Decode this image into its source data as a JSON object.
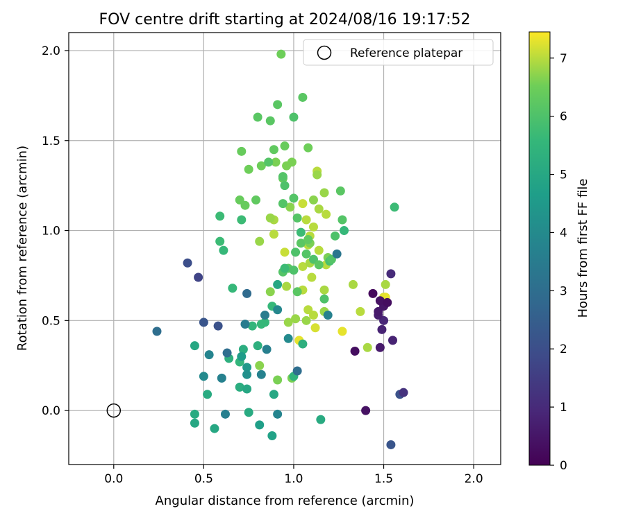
{
  "chart_data": {
    "type": "scatter",
    "title": "FOV centre drift starting at 2024/08/16 19:17:52",
    "xlabel": "Angular distance from reference (arcmin)",
    "ylabel": "Rotation from reference (arcmin)",
    "xlim": [
      -0.25,
      2.15
    ],
    "ylim": [
      -0.3,
      2.1
    ],
    "x_ticks": [
      "0.0",
      "0.5",
      "1.0",
      "1.5",
      "2.0"
    ],
    "y_ticks": [
      "0.0",
      "0.5",
      "1.0",
      "1.5",
      "2.0"
    ],
    "grid": true,
    "legend": {
      "position": "top-right",
      "label": "Reference platepar"
    },
    "reference_point": {
      "x": 0.0,
      "y": 0.0
    },
    "colorbar": {
      "label": "Hours from first FF file",
      "range": [
        0,
        7.45
      ],
      "ticks": [
        "0",
        "1",
        "2",
        "3",
        "4",
        "5",
        "6",
        "7"
      ],
      "colormap": "viridis"
    },
    "points": [
      {
        "x": 1.5,
        "y": 0.63,
        "h": 7.2
      },
      {
        "x": 1.51,
        "y": 0.63,
        "h": 7.3
      },
      {
        "x": 1.27,
        "y": 0.44,
        "h": 7.3
      },
      {
        "x": 1.03,
        "y": 0.39,
        "h": 7.3
      },
      {
        "x": 1.12,
        "y": 0.46,
        "h": 7.2
      },
      {
        "x": 1.37,
        "y": 0.55,
        "h": 7.0
      },
      {
        "x": 1.51,
        "y": 0.7,
        "h": 6.9
      },
      {
        "x": 1.41,
        "y": 0.35,
        "h": 6.9
      },
      {
        "x": 1.33,
        "y": 0.7,
        "h": 6.9
      },
      {
        "x": 1.11,
        "y": 0.53,
        "h": 7.0
      },
      {
        "x": 1.17,
        "y": 0.55,
        "h": 6.8
      },
      {
        "x": 1.08,
        "y": 0.56,
        "h": 7.0
      },
      {
        "x": 1.05,
        "y": 0.67,
        "h": 7.0
      },
      {
        "x": 1.17,
        "y": 0.67,
        "h": 6.9
      },
      {
        "x": 0.96,
        "y": 0.69,
        "h": 6.9
      },
      {
        "x": 1.1,
        "y": 0.74,
        "h": 7.0
      },
      {
        "x": 1.05,
        "y": 0.8,
        "h": 7.0
      },
      {
        "x": 1.09,
        "y": 0.82,
        "h": 6.9
      },
      {
        "x": 1.18,
        "y": 0.81,
        "h": 7.0
      },
      {
        "x": 1.14,
        "y": 0.89,
        "h": 7.0
      },
      {
        "x": 1.08,
        "y": 0.92,
        "h": 7.0
      },
      {
        "x": 0.95,
        "y": 0.88,
        "h": 7.1
      },
      {
        "x": 1.09,
        "y": 0.97,
        "h": 7.0
      },
      {
        "x": 1.11,
        "y": 1.02,
        "h": 7.0
      },
      {
        "x": 1.07,
        "y": 1.06,
        "h": 7.0
      },
      {
        "x": 1.18,
        "y": 1.09,
        "h": 7.0
      },
      {
        "x": 1.14,
        "y": 1.12,
        "h": 6.9
      },
      {
        "x": 1.05,
        "y": 1.15,
        "h": 7.1
      },
      {
        "x": 0.89,
        "y": 1.06,
        "h": 6.9
      },
      {
        "x": 0.87,
        "y": 1.07,
        "h": 6.8
      },
      {
        "x": 0.89,
        "y": 0.98,
        "h": 7.0
      },
      {
        "x": 0.81,
        "y": 0.94,
        "h": 6.8
      },
      {
        "x": 1.13,
        "y": 1.33,
        "h": 7.0
      },
      {
        "x": 1.13,
        "y": 1.31,
        "h": 6.8
      },
      {
        "x": 1.17,
        "y": 1.21,
        "h": 6.8
      },
      {
        "x": 1.01,
        "y": 0.51,
        "h": 6.8
      },
      {
        "x": 0.97,
        "y": 0.49,
        "h": 6.8
      },
      {
        "x": 1.07,
        "y": 0.5,
        "h": 6.8
      },
      {
        "x": 0.87,
        "y": 0.66,
        "h": 6.7
      },
      {
        "x": 0.81,
        "y": 0.25,
        "h": 6.7
      },
      {
        "x": 0.91,
        "y": 0.17,
        "h": 6.6
      },
      {
        "x": 0.99,
        "y": 0.18,
        "h": 6.6
      },
      {
        "x": 1.19,
        "y": 0.85,
        "h": 6.6
      },
      {
        "x": 1.09,
        "y": 0.93,
        "h": 6.6
      },
      {
        "x": 1.11,
        "y": 1.17,
        "h": 6.7
      },
      {
        "x": 0.98,
        "y": 1.13,
        "h": 6.7
      },
      {
        "x": 0.94,
        "y": 1.29,
        "h": 6.4
      },
      {
        "x": 0.96,
        "y": 1.36,
        "h": 6.6
      },
      {
        "x": 0.99,
        "y": 1.38,
        "h": 6.6
      },
      {
        "x": 0.9,
        "y": 1.38,
        "h": 6.6
      },
      {
        "x": 0.82,
        "y": 1.36,
        "h": 6.5
      },
      {
        "x": 0.75,
        "y": 1.34,
        "h": 6.5
      },
      {
        "x": 0.71,
        "y": 1.44,
        "h": 6.4
      },
      {
        "x": 0.86,
        "y": 1.38,
        "h": 6.1
      },
      {
        "x": 0.89,
        "y": 1.45,
        "h": 6.3
      },
      {
        "x": 0.95,
        "y": 1.47,
        "h": 6.4
      },
      {
        "x": 1.08,
        "y": 1.46,
        "h": 6.5
      },
      {
        "x": 0.8,
        "y": 1.63,
        "h": 6.2
      },
      {
        "x": 0.87,
        "y": 1.61,
        "h": 6.2
      },
      {
        "x": 0.91,
        "y": 1.7,
        "h": 6.2
      },
      {
        "x": 1.05,
        "y": 1.74,
        "h": 6.2
      },
      {
        "x": 1.0,
        "y": 1.63,
        "h": 6.0
      },
      {
        "x": 0.93,
        "y": 1.98,
        "h": 6.5
      },
      {
        "x": 0.7,
        "y": 1.17,
        "h": 6.4
      },
      {
        "x": 0.73,
        "y": 1.14,
        "h": 6.4
      },
      {
        "x": 0.79,
        "y": 1.17,
        "h": 6.3
      },
      {
        "x": 0.94,
        "y": 1.15,
        "h": 6.1
      },
      {
        "x": 1.02,
        "y": 1.07,
        "h": 6.1
      },
      {
        "x": 1.0,
        "y": 1.18,
        "h": 6.1
      },
      {
        "x": 0.95,
        "y": 1.25,
        "h": 6.0
      },
      {
        "x": 0.94,
        "y": 1.3,
        "h": 6.1
      },
      {
        "x": 1.27,
        "y": 1.06,
        "h": 6.1
      },
      {
        "x": 1.26,
        "y": 1.22,
        "h": 6.2
      },
      {
        "x": 1.23,
        "y": 0.97,
        "h": 6.0
      },
      {
        "x": 1.28,
        "y": 1.0,
        "h": 5.6
      },
      {
        "x": 1.04,
        "y": 0.93,
        "h": 6.2
      },
      {
        "x": 1.08,
        "y": 0.95,
        "h": 6.3
      },
      {
        "x": 1.04,
        "y": 0.99,
        "h": 5.7
      },
      {
        "x": 1.07,
        "y": 0.87,
        "h": 6.1
      },
      {
        "x": 1.01,
        "y": 0.88,
        "h": 6.0
      },
      {
        "x": 0.97,
        "y": 0.79,
        "h": 6.2
      },
      {
        "x": 0.94,
        "y": 0.77,
        "h": 6.1
      },
      {
        "x": 0.95,
        "y": 0.79,
        "h": 5.7
      },
      {
        "x": 1.0,
        "y": 0.78,
        "h": 6.0
      },
      {
        "x": 1.11,
        "y": 0.84,
        "h": 6.0
      },
      {
        "x": 1.14,
        "y": 0.81,
        "h": 6.2
      },
      {
        "x": 1.2,
        "y": 0.83,
        "h": 5.9
      },
      {
        "x": 1.21,
        "y": 0.84,
        "h": 6.1
      },
      {
        "x": 1.17,
        "y": 0.62,
        "h": 6.0
      },
      {
        "x": 1.02,
        "y": 0.66,
        "h": 6.2
      },
      {
        "x": 0.91,
        "y": 0.7,
        "h": 5.0
      },
      {
        "x": 0.71,
        "y": 1.06,
        "h": 5.7
      },
      {
        "x": 0.59,
        "y": 1.08,
        "h": 5.7
      },
      {
        "x": 0.59,
        "y": 0.94,
        "h": 5.7
      },
      {
        "x": 0.61,
        "y": 0.89,
        "h": 5.6
      },
      {
        "x": 0.66,
        "y": 0.68,
        "h": 5.6
      },
      {
        "x": 1.56,
        "y": 1.13,
        "h": 5.7
      },
      {
        "x": 0.88,
        "y": 0.58,
        "h": 5.6
      },
      {
        "x": 0.77,
        "y": 0.47,
        "h": 5.5
      },
      {
        "x": 0.82,
        "y": 0.48,
        "h": 5.6
      },
      {
        "x": 0.84,
        "y": 0.49,
        "h": 5.6
      },
      {
        "x": 0.8,
        "y": 0.36,
        "h": 5.3
      },
      {
        "x": 0.7,
        "y": 0.27,
        "h": 5.5
      },
      {
        "x": 0.64,
        "y": 0.29,
        "h": 5.3
      },
      {
        "x": 0.72,
        "y": 0.34,
        "h": 5.2
      },
      {
        "x": 1.05,
        "y": 0.37,
        "h": 5.3
      },
      {
        "x": 1.0,
        "y": 0.19,
        "h": 5.4
      },
      {
        "x": 0.7,
        "y": 0.13,
        "h": 5.2
      },
      {
        "x": 0.74,
        "y": 0.12,
        "h": 5.0
      },
      {
        "x": 0.89,
        "y": 0.09,
        "h": 5.0
      },
      {
        "x": 0.52,
        "y": 0.09,
        "h": 5.1
      },
      {
        "x": 0.45,
        "y": 0.36,
        "h": 5.0
      },
      {
        "x": 0.75,
        "y": -0.01,
        "h": 5.1
      },
      {
        "x": 0.45,
        "y": -0.02,
        "h": 5.1
      },
      {
        "x": 0.45,
        "y": -0.07,
        "h": 5.0
      },
      {
        "x": 0.56,
        "y": -0.1,
        "h": 5.0
      },
      {
        "x": 1.15,
        "y": -0.05,
        "h": 5.1
      },
      {
        "x": 0.88,
        "y": -0.14,
        "h": 4.8
      },
      {
        "x": 0.81,
        "y": -0.08,
        "h": 4.7
      },
      {
        "x": 0.71,
        "y": 0.3,
        "h": 4.6
      },
      {
        "x": 0.74,
        "y": 0.24,
        "h": 4.5
      },
      {
        "x": 0.74,
        "y": 0.2,
        "h": 4.2
      },
      {
        "x": 0.5,
        "y": 0.19,
        "h": 4.0
      },
      {
        "x": 0.53,
        "y": 0.31,
        "h": 3.8
      },
      {
        "x": 0.6,
        "y": 0.18,
        "h": 3.7
      },
      {
        "x": 0.62,
        "y": -0.02,
        "h": 3.6
      },
      {
        "x": 0.91,
        "y": -0.02,
        "h": 3.8
      },
      {
        "x": 0.91,
        "y": 0.56,
        "h": 3.9
      },
      {
        "x": 0.97,
        "y": 0.4,
        "h": 4.0
      },
      {
        "x": 0.84,
        "y": 0.53,
        "h": 3.5
      },
      {
        "x": 0.73,
        "y": 0.48,
        "h": 3.5
      },
      {
        "x": 0.85,
        "y": 0.34,
        "h": 3.6
      },
      {
        "x": 0.82,
        "y": 0.2,
        "h": 3.7
      },
      {
        "x": 1.19,
        "y": 0.53,
        "h": 3.7
      },
      {
        "x": 1.24,
        "y": 0.87,
        "h": 3.3
      },
      {
        "x": 1.02,
        "y": 0.22,
        "h": 3.0
      },
      {
        "x": 0.24,
        "y": 0.44,
        "h": 3.0
      },
      {
        "x": 0.63,
        "y": 0.32,
        "h": 3.0
      },
      {
        "x": 0.74,
        "y": 0.65,
        "h": 2.9
      },
      {
        "x": 0.5,
        "y": 0.49,
        "h": 2.2
      },
      {
        "x": 0.58,
        "y": 0.47,
        "h": 2.1
      },
      {
        "x": 0.41,
        "y": 0.82,
        "h": 2.0
      },
      {
        "x": 0.47,
        "y": 0.74,
        "h": 1.7
      },
      {
        "x": 1.59,
        "y": 0.09,
        "h": 2.1
      },
      {
        "x": 1.54,
        "y": -0.19,
        "h": 2.2
      },
      {
        "x": 1.61,
        "y": 0.1,
        "h": 1.2
      },
      {
        "x": 1.4,
        "y": 0.0,
        "h": 0.4
      },
      {
        "x": 1.34,
        "y": 0.33,
        "h": 0.3
      },
      {
        "x": 1.48,
        "y": 0.35,
        "h": 0.6
      },
      {
        "x": 1.55,
        "y": 0.39,
        "h": 0.8
      },
      {
        "x": 1.49,
        "y": 0.45,
        "h": 0.8
      },
      {
        "x": 1.5,
        "y": 0.5,
        "h": 0.9
      },
      {
        "x": 1.47,
        "y": 0.53,
        "h": 0.7
      },
      {
        "x": 1.47,
        "y": 0.55,
        "h": 0.6
      },
      {
        "x": 1.5,
        "y": 0.58,
        "h": 0.5
      },
      {
        "x": 1.48,
        "y": 0.61,
        "h": 0.4
      },
      {
        "x": 1.52,
        "y": 0.6,
        "h": 0.3
      },
      {
        "x": 1.44,
        "y": 0.65,
        "h": 0.2
      },
      {
        "x": 1.54,
        "y": 0.76,
        "h": 1.0
      }
    ]
  },
  "colors": {
    "grid": "#b0b0b0",
    "axes": "#000000",
    "background": "#ffffff",
    "legend_border": "#cccccc"
  }
}
